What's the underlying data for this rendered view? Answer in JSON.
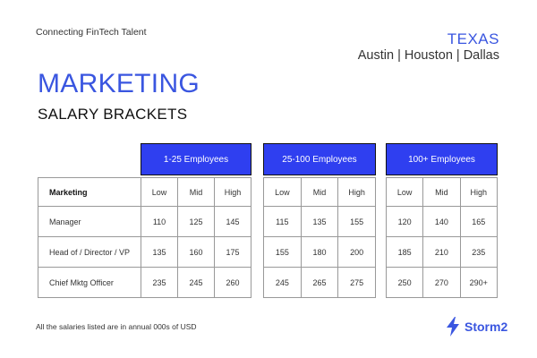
{
  "header": {
    "tagline": "Connecting FinTech Talent",
    "region": "TEXAS",
    "cities": "Austin | Houston | Dallas"
  },
  "title": "MARKETING",
  "subtitle": "SALARY BRACKETS",
  "table": {
    "label_header": "Marketing",
    "groups": [
      "1-25 Employees",
      "25-100 Employees",
      "100+ Employees"
    ],
    "levels": [
      "Low",
      "Mid",
      "High"
    ],
    "rows": [
      {
        "role": "Manager",
        "values": [
          "110",
          "125",
          "145",
          "115",
          "135",
          "155",
          "120",
          "140",
          "165"
        ]
      },
      {
        "role": "Head of / Director / VP",
        "values": [
          "135",
          "160",
          "175",
          "155",
          "180",
          "200",
          "185",
          "210",
          "235"
        ]
      },
      {
        "role": "Chief  Mktg Officer",
        "values": [
          "235",
          "245",
          "260",
          "245",
          "265",
          "275",
          "250",
          "270",
          "290+"
        ]
      }
    ]
  },
  "footnote": "All the salaries listed are in annual 000s of USD",
  "logo": {
    "text": "Storm2",
    "icon": "lightning-bolt-icon"
  },
  "colors": {
    "accent": "#3a56e0",
    "header_fill": "#2f3ff0"
  }
}
